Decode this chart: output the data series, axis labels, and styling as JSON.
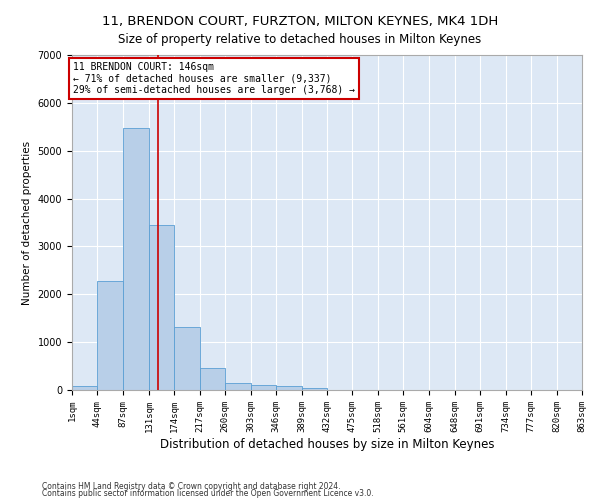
{
  "title": "11, BRENDON COURT, FURZTON, MILTON KEYNES, MK4 1DH",
  "subtitle": "Size of property relative to detached houses in Milton Keynes",
  "xlabel": "Distribution of detached houses by size in Milton Keynes",
  "ylabel": "Number of detached properties",
  "footer1": "Contains HM Land Registry data © Crown copyright and database right 2024.",
  "footer2": "Contains public sector information licensed under the Open Government Licence v3.0.",
  "annotation_line1": "11 BRENDON COURT: 146sqm",
  "annotation_line2": "← 71% of detached houses are smaller (9,337)",
  "annotation_line3": "29% of semi-detached houses are larger (3,768) →",
  "bar_color": "#b8cfe8",
  "bar_edge_color": "#5a9fd4",
  "background_color": "#dde8f5",
  "grid_color": "#ffffff",
  "fig_background": "#ffffff",
  "annotation_box_color": "#ffffff",
  "annotation_box_edge": "#cc0000",
  "vline_color": "#cc0000",
  "property_size": 146,
  "bin_edges": [
    1,
    44,
    87,
    131,
    174,
    217,
    260,
    303,
    346,
    389,
    432,
    475,
    518,
    561,
    604,
    648,
    691,
    734,
    777,
    820,
    863
  ],
  "bar_heights": [
    75,
    2280,
    5470,
    3440,
    1310,
    470,
    150,
    100,
    75,
    50,
    0,
    0,
    0,
    0,
    0,
    0,
    0,
    0,
    0,
    0
  ],
  "ylim": [
    0,
    7000
  ],
  "yticks": [
    0,
    1000,
    2000,
    3000,
    4000,
    5000,
    6000,
    7000
  ],
  "title_fontsize": 9.5,
  "subtitle_fontsize": 8.5,
  "ylabel_fontsize": 7.5,
  "xlabel_fontsize": 8.5,
  "tick_fontsize": 6.5,
  "annotation_fontsize": 7,
  "footer_fontsize": 5.5
}
